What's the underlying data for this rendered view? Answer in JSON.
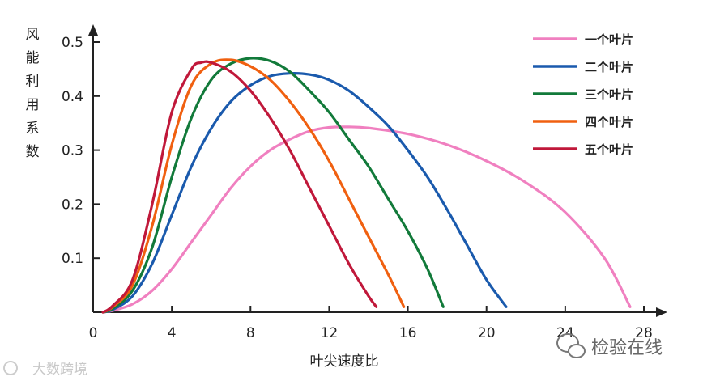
{
  "chart_data": {
    "type": "line",
    "xlabel": "叶尖速度比",
    "ylabel": "风能利用系数",
    "xlim": [
      0,
      28
    ],
    "ylim": [
      0,
      0.5
    ],
    "x_ticks": [
      "0",
      "4",
      "8",
      "12",
      "16",
      "20",
      "24",
      "28"
    ],
    "y_ticks": [
      "0.1",
      "0.2",
      "0.3",
      "0.4",
      "0.5"
    ],
    "grid": false,
    "legend_position": "top-right",
    "series": [
      {
        "name": "一个叶片",
        "color": "#f080c0",
        "points": [
          [
            0.5,
            0.0
          ],
          [
            1,
            0.003
          ],
          [
            2,
            0.015
          ],
          [
            3,
            0.04
          ],
          [
            4,
            0.08
          ],
          [
            5,
            0.13
          ],
          [
            6,
            0.18
          ],
          [
            7,
            0.23
          ],
          [
            8,
            0.27
          ],
          [
            9,
            0.3
          ],
          [
            10,
            0.32
          ],
          [
            11,
            0.335
          ],
          [
            12,
            0.342
          ],
          [
            13,
            0.343
          ],
          [
            14,
            0.341
          ],
          [
            16,
            0.33
          ],
          [
            18,
            0.31
          ],
          [
            20,
            0.28
          ],
          [
            22,
            0.24
          ],
          [
            24,
            0.185
          ],
          [
            26,
            0.1
          ],
          [
            27.3,
            0.01
          ]
        ]
      },
      {
        "name": "二个叶片",
        "color": "#1a5aad",
        "points": [
          [
            0.5,
            0.0
          ],
          [
            1,
            0.005
          ],
          [
            2,
            0.03
          ],
          [
            3,
            0.09
          ],
          [
            4,
            0.18
          ],
          [
            5,
            0.27
          ],
          [
            6,
            0.34
          ],
          [
            7,
            0.39
          ],
          [
            8,
            0.42
          ],
          [
            9,
            0.437
          ],
          [
            10,
            0.442
          ],
          [
            11,
            0.44
          ],
          [
            12,
            0.43
          ],
          [
            13,
            0.41
          ],
          [
            14,
            0.38
          ],
          [
            15,
            0.345
          ],
          [
            16,
            0.3
          ],
          [
            17,
            0.25
          ],
          [
            18,
            0.19
          ],
          [
            19,
            0.125
          ],
          [
            20,
            0.06
          ],
          [
            21,
            0.01
          ]
        ]
      },
      {
        "name": "三个叶片",
        "color": "#127a3a",
        "points": [
          [
            0.5,
            0.0
          ],
          [
            1,
            0.007
          ],
          [
            2,
            0.04
          ],
          [
            3,
            0.12
          ],
          [
            4,
            0.25
          ],
          [
            5,
            0.36
          ],
          [
            6,
            0.43
          ],
          [
            7,
            0.46
          ],
          [
            8,
            0.47
          ],
          [
            9,
            0.465
          ],
          [
            10,
            0.445
          ],
          [
            11,
            0.41
          ],
          [
            12,
            0.37
          ],
          [
            13,
            0.32
          ],
          [
            14,
            0.27
          ],
          [
            15,
            0.21
          ],
          [
            16,
            0.15
          ],
          [
            17,
            0.08
          ],
          [
            17.8,
            0.01
          ]
        ]
      },
      {
        "name": "四个叶片",
        "color": "#f06010",
        "points": [
          [
            0.5,
            0.0
          ],
          [
            1,
            0.01
          ],
          [
            2,
            0.05
          ],
          [
            3,
            0.16
          ],
          [
            4,
            0.31
          ],
          [
            5,
            0.42
          ],
          [
            6,
            0.46
          ],
          [
            7,
            0.467
          ],
          [
            8,
            0.455
          ],
          [
            9,
            0.43
          ],
          [
            10,
            0.39
          ],
          [
            11,
            0.34
          ],
          [
            12,
            0.28
          ],
          [
            13,
            0.21
          ],
          [
            14,
            0.14
          ],
          [
            15,
            0.07
          ],
          [
            15.8,
            0.01
          ]
        ]
      },
      {
        "name": "五个叶片",
        "color": "#c0183a",
        "points": [
          [
            0.5,
            0.0
          ],
          [
            1,
            0.012
          ],
          [
            2,
            0.06
          ],
          [
            3,
            0.2
          ],
          [
            4,
            0.37
          ],
          [
            5,
            0.45
          ],
          [
            5.5,
            0.462
          ],
          [
            6,
            0.462
          ],
          [
            7,
            0.445
          ],
          [
            8,
            0.41
          ],
          [
            9,
            0.36
          ],
          [
            10,
            0.3
          ],
          [
            11,
            0.23
          ],
          [
            12,
            0.16
          ],
          [
            13,
            0.09
          ],
          [
            14,
            0.03
          ],
          [
            14.4,
            0.01
          ]
        ]
      }
    ]
  },
  "watermarks": {
    "left": "大数跨境",
    "right": "检验在线"
  }
}
